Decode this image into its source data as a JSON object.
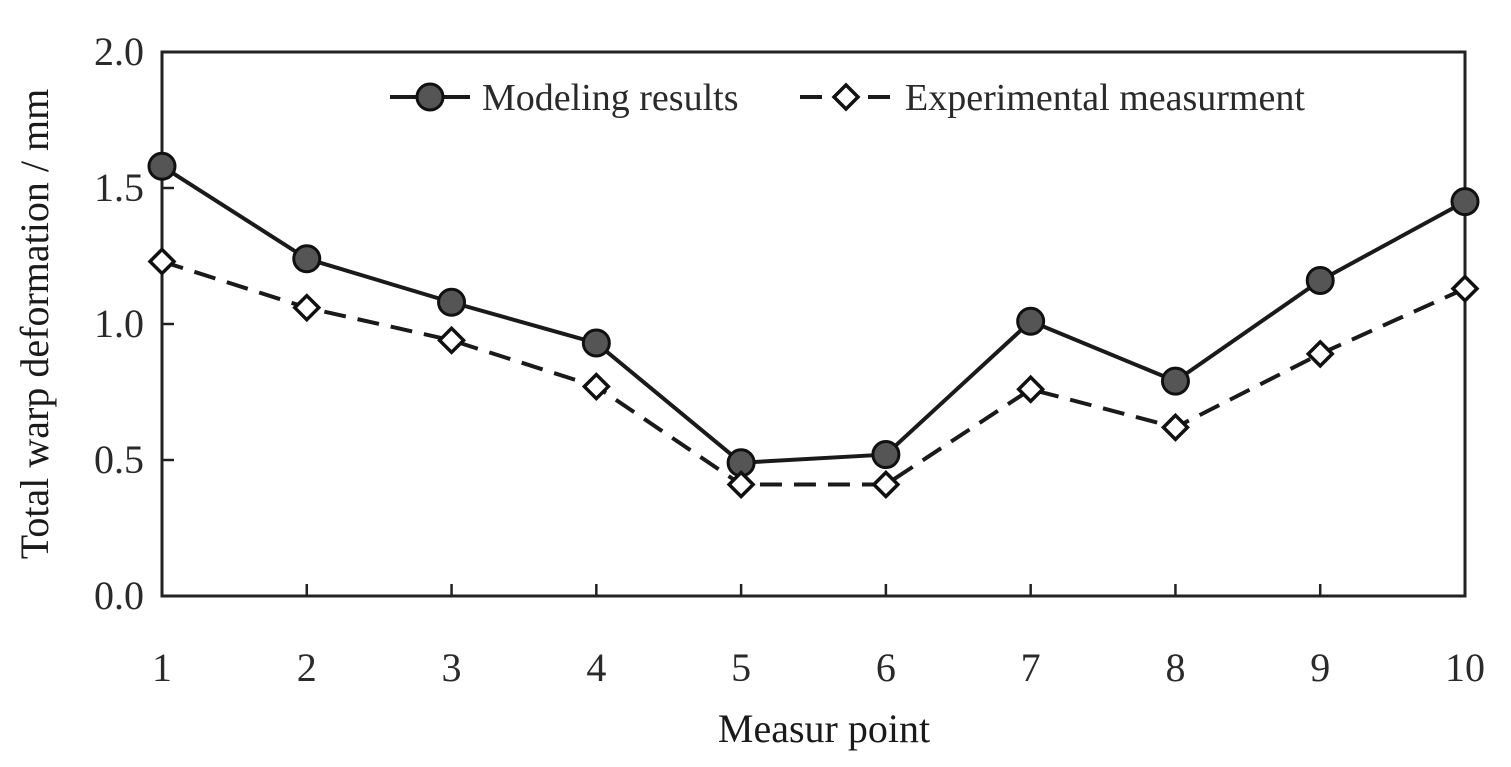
{
  "chart_data": {
    "type": "line",
    "xlabel": "Measur point",
    "ylabel": "Total warp deformation / mm",
    "x": [
      1,
      2,
      3,
      4,
      5,
      6,
      7,
      8,
      9,
      10
    ],
    "x_tick_labels": [
      "1",
      "2",
      "3",
      "4",
      "5",
      "6",
      "7",
      "8",
      "9",
      "10"
    ],
    "xlim": [
      1,
      10
    ],
    "ylim": [
      0,
      2
    ],
    "y_ticks": [
      0.0,
      0.5,
      1.0,
      1.5,
      2.0
    ],
    "y_tick_labels": [
      "0.0",
      "0.5",
      "1.0",
      "1.5",
      "2.0"
    ],
    "grid": false,
    "legend_position": "top-right",
    "series": [
      {
        "name": "Modeling results",
        "style": "solid",
        "marker": "circle",
        "color": "#1a1a1a",
        "marker_fill": "#555555",
        "values": [
          1.58,
          1.24,
          1.08,
          0.93,
          0.49,
          0.52,
          1.01,
          0.79,
          1.16,
          1.45
        ]
      },
      {
        "name": "Experimental measurment",
        "style": "dashed",
        "marker": "diamond",
        "color": "#1a1a1a",
        "marker_fill": "#ffffff",
        "values": [
          1.23,
          1.06,
          0.94,
          0.77,
          0.41,
          0.41,
          0.76,
          0.62,
          0.89,
          1.13
        ]
      }
    ]
  }
}
